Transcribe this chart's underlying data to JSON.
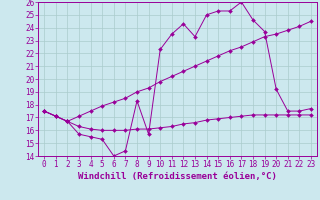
{
  "title": "",
  "xlabel": "Windchill (Refroidissement éolien,°C)",
  "ylabel": "",
  "bg_color": "#cce8ee",
  "line_color": "#990099",
  "grid_color": "#aacccc",
  "xlim": [
    -0.5,
    23.5
  ],
  "ylim": [
    14,
    26
  ],
  "xticks": [
    0,
    1,
    2,
    3,
    4,
    5,
    6,
    7,
    8,
    9,
    10,
    11,
    12,
    13,
    14,
    15,
    16,
    17,
    18,
    19,
    20,
    21,
    22,
    23
  ],
  "yticks": [
    14,
    15,
    16,
    17,
    18,
    19,
    20,
    21,
    22,
    23,
    24,
    25,
    26
  ],
  "line1_x": [
    0,
    1,
    2,
    3,
    4,
    5,
    6,
    7,
    8,
    9,
    10,
    11,
    12,
    13,
    14,
    15,
    16,
    17,
    18,
    19,
    20,
    21,
    22,
    23
  ],
  "line1_y": [
    17.5,
    17.1,
    16.7,
    15.7,
    15.5,
    15.3,
    14.0,
    14.4,
    18.3,
    15.7,
    22.3,
    23.5,
    24.3,
    23.3,
    25.0,
    25.3,
    25.3,
    26.0,
    24.6,
    23.7,
    19.2,
    17.5,
    17.5,
    17.7
  ],
  "line2_x": [
    0,
    1,
    2,
    3,
    4,
    5,
    6,
    7,
    8,
    9,
    10,
    11,
    12,
    13,
    14,
    15,
    16,
    17,
    18,
    19,
    20,
    21,
    22,
    23
  ],
  "line2_y": [
    17.5,
    17.1,
    16.7,
    16.3,
    16.1,
    16.0,
    16.0,
    16.0,
    16.1,
    16.1,
    16.2,
    16.3,
    16.5,
    16.6,
    16.8,
    16.9,
    17.0,
    17.1,
    17.2,
    17.2,
    17.2,
    17.2,
    17.2,
    17.2
  ],
  "line3_x": [
    0,
    1,
    2,
    3,
    4,
    5,
    6,
    7,
    8,
    9,
    10,
    11,
    12,
    13,
    14,
    15,
    16,
    17,
    18,
    19,
    20,
    21,
    22,
    23
  ],
  "line3_y": [
    17.5,
    17.1,
    16.7,
    17.1,
    17.5,
    17.9,
    18.2,
    18.5,
    19.0,
    19.3,
    19.8,
    20.2,
    20.6,
    21.0,
    21.4,
    21.8,
    22.2,
    22.5,
    22.9,
    23.3,
    23.5,
    23.8,
    24.1,
    24.5
  ],
  "font_color": "#990099",
  "label_fontsize": 6.5,
  "tick_fontsize": 5.5
}
